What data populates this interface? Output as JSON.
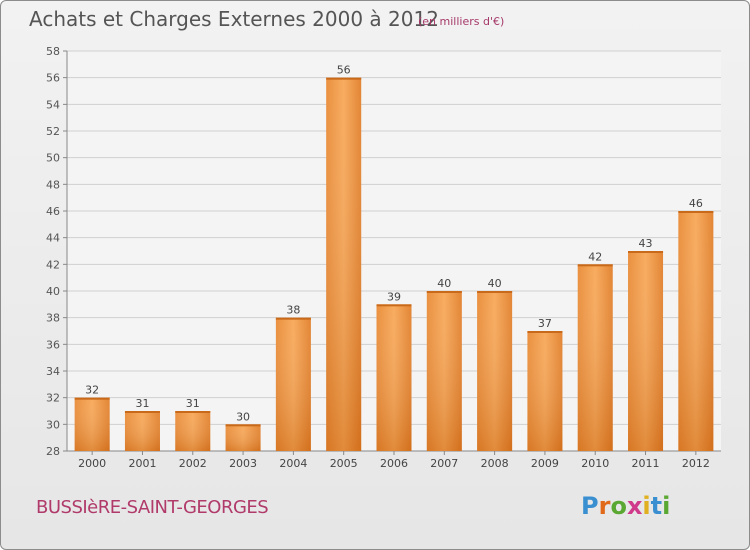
{
  "title": "Achats et Charges Externes 2000 à 2012",
  "unit_note": "(en milliers d'€)",
  "commune": "BUSSIèRE-SAINT-GEORGES",
  "logo": "Proxiti",
  "colors": {
    "bar_light": "#f7a552",
    "bar_dark": "#e07a22",
    "grid": "#d0d0d0"
  },
  "chart_data": {
    "type": "bar",
    "title": "Achats et Charges Externes 2000 à 2012",
    "subtitle": "(en milliers d'€)",
    "categories": [
      "2000",
      "2001",
      "2002",
      "2003",
      "2004",
      "2005",
      "2006",
      "2007",
      "2008",
      "2009",
      "2010",
      "2011",
      "2012"
    ],
    "values": [
      32,
      31,
      31,
      30,
      38,
      56,
      39,
      40,
      40,
      37,
      42,
      43,
      46
    ],
    "ylim": [
      28,
      58
    ],
    "yticks": [
      28,
      30,
      32,
      34,
      36,
      38,
      40,
      42,
      44,
      46,
      48,
      50,
      52,
      54,
      56,
      58
    ],
    "grid": true,
    "xlabel": "",
    "ylabel": ""
  }
}
